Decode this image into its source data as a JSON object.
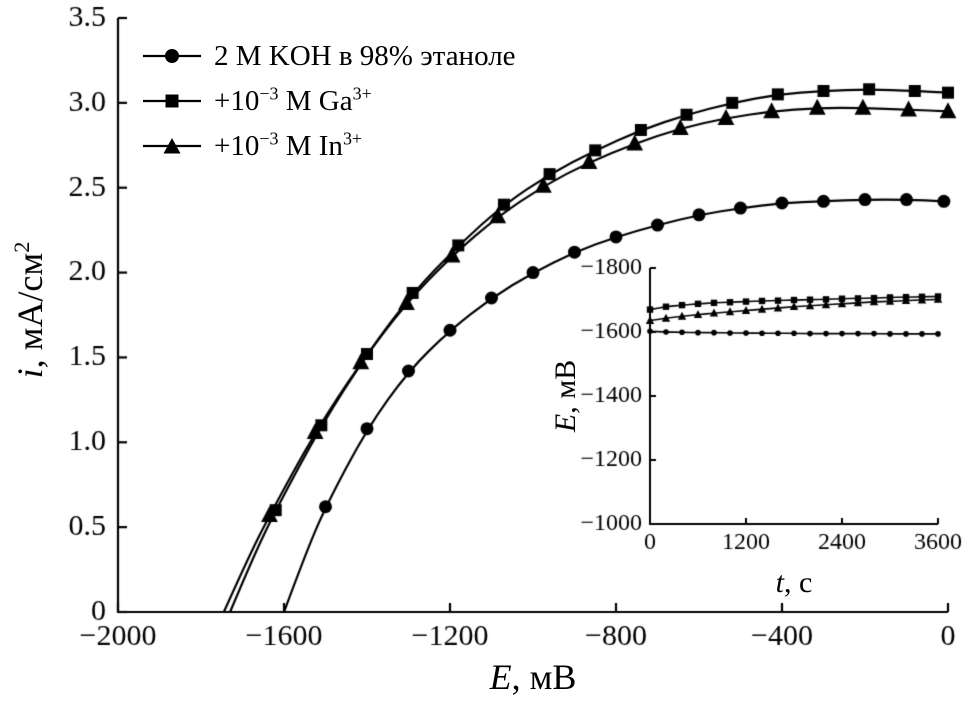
{
  "chart_data": [
    {
      "id": "main-polarization-plot",
      "type": "line",
      "title": "",
      "xlabel_var": "E",
      "xlabel_rest": ", мВ",
      "ylabel_var": "i",
      "ylabel_rest": ", мА/см",
      "ylabel_sup": "2",
      "xlim": [
        -2000,
        0
      ],
      "ylim": [
        0,
        3.5
      ],
      "grid": false,
      "legend_position": "upper-left",
      "x_ticks": {
        "values": [
          -2000,
          -1600,
          -1200,
          -800,
          -400,
          0
        ],
        "labels": [
          "−2000",
          "−1600",
          "−1200",
          "−800",
          "−400",
          "0"
        ]
      },
      "y_ticks": {
        "values": [
          0,
          0.5,
          1,
          1.5,
          2,
          2.5,
          3,
          3.5
        ],
        "labels": [
          "0",
          "0.5",
          "1.0",
          "1.5",
          "2.0",
          "2.5",
          "3.0",
          "3.5"
        ]
      },
      "series": [
        {
          "name": "2 M KOH в 98% этаноле",
          "label_pre": "2 M KOH в 98% этаноле",
          "marker": "circle",
          "x": [
            -1600,
            -1550,
            -1500,
            -1400,
            -1300,
            -1200,
            -1100,
            -1000,
            -900,
            -800,
            -700,
            -600,
            -500,
            -400,
            -300,
            -200,
            -100,
            -10
          ],
          "y": [
            0,
            0.33,
            0.62,
            1.08,
            1.42,
            1.66,
            1.85,
            2.0,
            2.12,
            2.21,
            2.28,
            2.34,
            2.38,
            2.41,
            2.42,
            2.43,
            2.43,
            2.42
          ]
        },
        {
          "name": "+10^-3 M Ga^3+",
          "label_pre": "+10",
          "label_sup1": "−3",
          "label_mid": " M Ga",
          "label_sup2": "3+",
          "marker": "square",
          "x": [
            -1730,
            -1675,
            -1620,
            -1510,
            -1400,
            -1290,
            -1180,
            -1070,
            -960,
            -850,
            -740,
            -630,
            -520,
            -410,
            -300,
            -190,
            -80,
            0
          ],
          "y": [
            0,
            0.32,
            0.6,
            1.1,
            1.52,
            1.88,
            2.16,
            2.4,
            2.58,
            2.72,
            2.84,
            2.93,
            3.0,
            3.05,
            3.07,
            3.08,
            3.07,
            3.06
          ]
        },
        {
          "name": "+10^-3 M In^3+",
          "label_pre": "+10",
          "label_sup1": "−3",
          "label_mid": " M In",
          "label_sup2": "3+",
          "marker": "triangle",
          "x": [
            -1745,
            -1690,
            -1635,
            -1525,
            -1415,
            -1305,
            -1195,
            -1085,
            -975,
            -865,
            -755,
            -645,
            -535,
            -425,
            -315,
            -205,
            -95,
            0
          ],
          "y": [
            0,
            0.3,
            0.57,
            1.06,
            1.47,
            1.82,
            2.1,
            2.33,
            2.51,
            2.65,
            2.76,
            2.85,
            2.91,
            2.95,
            2.97,
            2.97,
            2.96,
            2.95
          ]
        }
      ]
    },
    {
      "id": "inset-potential-vs-time-plot",
      "type": "line",
      "title": "",
      "xlabel_var": "t",
      "xlabel_rest": ", с",
      "ylabel_var": "E",
      "ylabel_rest": ", мВ",
      "xlim": [
        0,
        3600
      ],
      "ylim": [
        -1000,
        -1800
      ],
      "grid": false,
      "legend_position": "none",
      "x_ticks": {
        "values": [
          0,
          1200,
          2400,
          3600
        ],
        "labels": [
          "0",
          "1200",
          "2400",
          "3600"
        ]
      },
      "y_ticks": {
        "values": [
          -1800,
          -1600,
          -1400,
          -1200,
          -1000
        ],
        "labels": [
          "−1800",
          "−1600",
          "−1400",
          "−1200",
          "−1000"
        ]
      },
      "series": [
        {
          "name": "2 M KOH в 98% этаноле",
          "marker": "circle",
          "x": [
            0,
            200,
            400,
            600,
            800,
            1000,
            1200,
            1400,
            1600,
            1800,
            2000,
            2200,
            2400,
            2600,
            2800,
            3000,
            3200,
            3400,
            3600
          ],
          "y": [
            -1602,
            -1600,
            -1599,
            -1598,
            -1598,
            -1597,
            -1597,
            -1596,
            -1596,
            -1596,
            -1595,
            -1595,
            -1595,
            -1595,
            -1595,
            -1594,
            -1594,
            -1594,
            -1594
          ]
        },
        {
          "name": "+10^-3 M Ga^3+",
          "marker": "square",
          "x": [
            0,
            200,
            400,
            600,
            800,
            1000,
            1200,
            1400,
            1600,
            1800,
            2000,
            2200,
            2400,
            2600,
            2800,
            3000,
            3200,
            3400,
            3600
          ],
          "y": [
            -1670,
            -1679,
            -1684,
            -1688,
            -1691,
            -1693,
            -1695,
            -1697,
            -1698,
            -1700,
            -1701,
            -1702,
            -1704,
            -1705,
            -1706,
            -1708,
            -1709,
            -1710,
            -1711
          ]
        },
        {
          "name": "+10^-3 M In^3+",
          "marker": "triangle",
          "x": [
            0,
            200,
            400,
            600,
            800,
            1000,
            1200,
            1400,
            1600,
            1800,
            2000,
            2200,
            2400,
            2600,
            2800,
            3000,
            3200,
            3400,
            3600
          ],
          "y": [
            -1636,
            -1643,
            -1649,
            -1654,
            -1659,
            -1663,
            -1667,
            -1671,
            -1675,
            -1679,
            -1682,
            -1685,
            -1688,
            -1691,
            -1694,
            -1696,
            -1698,
            -1700,
            -1702
          ]
        }
      ]
    }
  ]
}
